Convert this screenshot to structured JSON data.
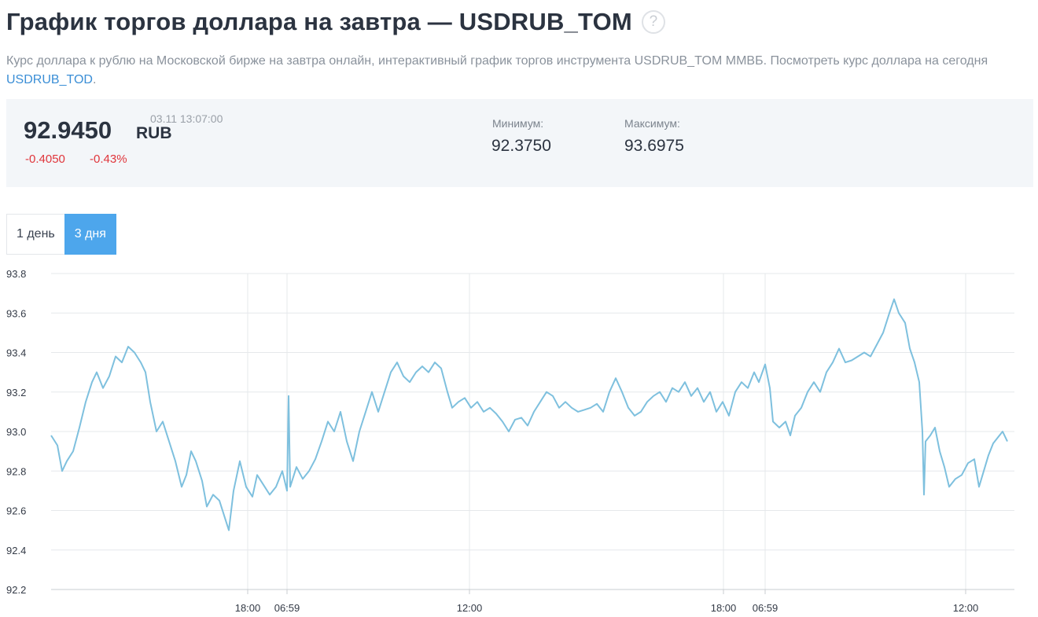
{
  "header": {
    "title": "График торгов доллара на завтра — USDRUB_TOM",
    "help_icon_glyph": "?",
    "description_text": "Курс доллара к рублю на Московской бирже на завтра онлайн, интерактивный график торгов инструмента USDRUB_TOM ММВБ. Посмотреть курс доллара на сегодня ",
    "description_link": "USDRUB_TOD",
    "description_end": "."
  },
  "quote": {
    "price": "92.9450",
    "currency": "RUB",
    "timestamp": "03.11 13:07:00",
    "change_abs": "-0.4050",
    "change_pct": "-0.43%",
    "min_label": "Минимум:",
    "min_value": "92.3750",
    "max_label": "Максимум:",
    "max_value": "93.6975"
  },
  "tabs": [
    {
      "label": "1 день",
      "active": false
    },
    {
      "label": "3 дня",
      "active": true
    }
  ],
  "colors": {
    "line": "#7ec0de",
    "negative": "#e0353b",
    "active_tab": "#4da6ec",
    "grid": "#e6e8eb"
  },
  "chart_data": {
    "type": "line",
    "title": "",
    "xlabel": "",
    "ylabel": "",
    "ylim": [
      92.2,
      93.8
    ],
    "y_ticks": [
      "93.8",
      "93.6",
      "93.4",
      "93.2",
      "93.0",
      "92.8",
      "92.6",
      "92.4",
      "92.2"
    ],
    "x_ticks": [
      {
        "label": "18:00",
        "t": 250
      },
      {
        "label": "06:59",
        "t": 300
      },
      {
        "label": "12:00",
        "t": 532
      },
      {
        "label": "18:00",
        "t": 855
      },
      {
        "label": "06:59",
        "t": 908
      },
      {
        "label": "12:00",
        "t": 1163
      }
    ],
    "x_range": [
      0,
      1225
    ],
    "grid": true,
    "series": [
      {
        "values": [
          [
            0,
            92.98
          ],
          [
            8,
            92.93
          ],
          [
            14,
            92.8
          ],
          [
            20,
            92.85
          ],
          [
            28,
            92.9
          ],
          [
            36,
            93.02
          ],
          [
            44,
            93.15
          ],
          [
            52,
            93.25
          ],
          [
            58,
            93.3
          ],
          [
            66,
            93.22
          ],
          [
            74,
            93.28
          ],
          [
            82,
            93.38
          ],
          [
            90,
            93.35
          ],
          [
            98,
            93.43
          ],
          [
            106,
            93.4
          ],
          [
            114,
            93.35
          ],
          [
            120,
            93.3
          ],
          [
            126,
            93.15
          ],
          [
            134,
            93.0
          ],
          [
            142,
            93.05
          ],
          [
            150,
            92.95
          ],
          [
            158,
            92.85
          ],
          [
            166,
            92.72
          ],
          [
            172,
            92.78
          ],
          [
            178,
            92.9
          ],
          [
            184,
            92.85
          ],
          [
            192,
            92.75
          ],
          [
            198,
            92.62
          ],
          [
            206,
            92.68
          ],
          [
            214,
            92.65
          ],
          [
            222,
            92.55
          ],
          [
            226,
            92.5
          ],
          [
            232,
            92.7
          ],
          [
            240,
            92.85
          ],
          [
            248,
            92.72
          ],
          [
            256,
            92.67
          ],
          [
            262,
            92.78
          ],
          [
            270,
            92.73
          ],
          [
            278,
            92.68
          ],
          [
            286,
            92.72
          ],
          [
            294,
            92.8
          ],
          [
            300,
            92.7
          ],
          [
            302,
            93.18
          ],
          [
            304,
            92.72
          ],
          [
            312,
            92.82
          ],
          [
            320,
            92.76
          ],
          [
            328,
            92.8
          ],
          [
            336,
            92.86
          ],
          [
            344,
            92.95
          ],
          [
            352,
            93.05
          ],
          [
            360,
            93.0
          ],
          [
            368,
            93.1
          ],
          [
            376,
            92.95
          ],
          [
            384,
            92.85
          ],
          [
            392,
            93.0
          ],
          [
            400,
            93.1
          ],
          [
            408,
            93.2
          ],
          [
            416,
            93.1
          ],
          [
            424,
            93.2
          ],
          [
            432,
            93.3
          ],
          [
            440,
            93.35
          ],
          [
            448,
            93.28
          ],
          [
            456,
            93.25
          ],
          [
            464,
            93.3
          ],
          [
            472,
            93.33
          ],
          [
            480,
            93.3
          ],
          [
            488,
            93.35
          ],
          [
            496,
            93.32
          ],
          [
            504,
            93.2
          ],
          [
            510,
            93.12
          ],
          [
            518,
            93.15
          ],
          [
            526,
            93.17
          ],
          [
            534,
            93.12
          ],
          [
            542,
            93.15
          ],
          [
            550,
            93.1
          ],
          [
            558,
            93.12
          ],
          [
            566,
            93.09
          ],
          [
            574,
            93.05
          ],
          [
            582,
            93.0
          ],
          [
            590,
            93.06
          ],
          [
            598,
            93.07
          ],
          [
            606,
            93.03
          ],
          [
            614,
            93.1
          ],
          [
            622,
            93.15
          ],
          [
            630,
            93.2
          ],
          [
            638,
            93.18
          ],
          [
            646,
            93.12
          ],
          [
            654,
            93.15
          ],
          [
            662,
            93.12
          ],
          [
            670,
            93.1
          ],
          [
            678,
            93.11
          ],
          [
            686,
            93.12
          ],
          [
            694,
            93.14
          ],
          [
            702,
            93.1
          ],
          [
            710,
            93.2
          ],
          [
            718,
            93.27
          ],
          [
            726,
            93.2
          ],
          [
            734,
            93.12
          ],
          [
            742,
            93.08
          ],
          [
            750,
            93.1
          ],
          [
            758,
            93.15
          ],
          [
            766,
            93.18
          ],
          [
            774,
            93.2
          ],
          [
            782,
            93.15
          ],
          [
            790,
            93.22
          ],
          [
            798,
            93.2
          ],
          [
            806,
            93.25
          ],
          [
            814,
            93.18
          ],
          [
            822,
            93.22
          ],
          [
            830,
            93.15
          ],
          [
            838,
            93.2
          ],
          [
            846,
            93.1
          ],
          [
            854,
            93.15
          ],
          [
            862,
            93.08
          ],
          [
            870,
            93.2
          ],
          [
            878,
            93.25
          ],
          [
            886,
            93.22
          ],
          [
            894,
            93.3
          ],
          [
            900,
            93.25
          ],
          [
            908,
            93.34
          ],
          [
            914,
            93.22
          ],
          [
            918,
            93.05
          ],
          [
            926,
            93.02
          ],
          [
            934,
            93.05
          ],
          [
            940,
            92.98
          ],
          [
            946,
            93.08
          ],
          [
            954,
            93.12
          ],
          [
            962,
            93.2
          ],
          [
            970,
            93.25
          ],
          [
            978,
            93.2
          ],
          [
            986,
            93.3
          ],
          [
            994,
            93.35
          ],
          [
            1002,
            93.42
          ],
          [
            1010,
            93.35
          ],
          [
            1018,
            93.36
          ],
          [
            1026,
            93.38
          ],
          [
            1034,
            93.4
          ],
          [
            1042,
            93.38
          ],
          [
            1050,
            93.44
          ],
          [
            1058,
            93.5
          ],
          [
            1066,
            93.6
          ],
          [
            1072,
            93.67
          ],
          [
            1078,
            93.6
          ],
          [
            1086,
            93.55
          ],
          [
            1092,
            93.42
          ],
          [
            1098,
            93.35
          ],
          [
            1104,
            93.25
          ],
          [
            1108,
            93.0
          ],
          [
            1110,
            92.68
          ],
          [
            1112,
            92.95
          ],
          [
            1118,
            92.98
          ],
          [
            1124,
            93.02
          ],
          [
            1130,
            92.9
          ],
          [
            1136,
            92.82
          ],
          [
            1142,
            92.72
          ],
          [
            1150,
            92.76
          ],
          [
            1158,
            92.78
          ],
          [
            1166,
            92.84
          ],
          [
            1174,
            92.86
          ],
          [
            1180,
            92.72
          ],
          [
            1186,
            92.8
          ],
          [
            1192,
            92.88
          ],
          [
            1198,
            92.94
          ],
          [
            1204,
            92.97
          ],
          [
            1210,
            93.0
          ],
          [
            1216,
            92.95
          ]
        ]
      }
    ]
  }
}
